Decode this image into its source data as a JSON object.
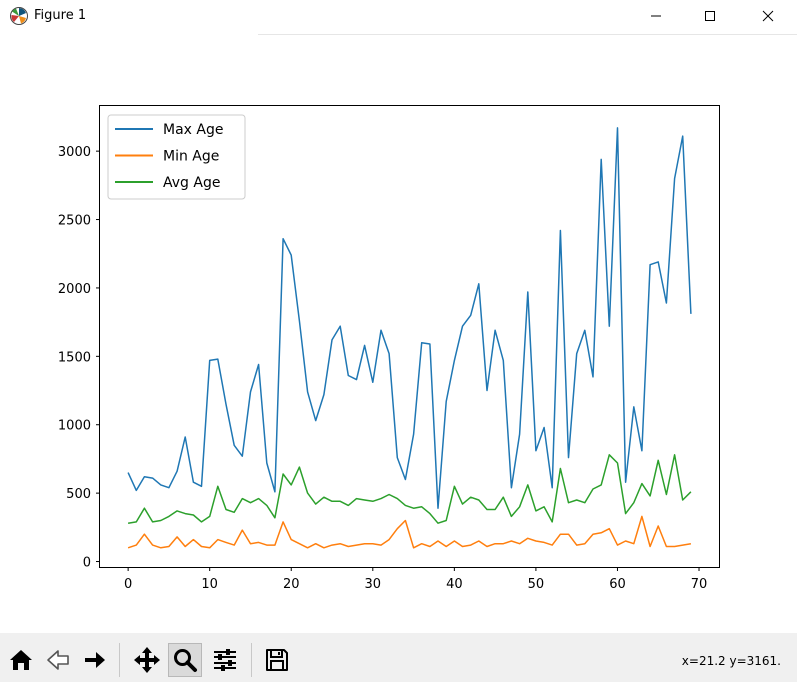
{
  "window": {
    "title": "Figure 1",
    "icon": "matplotlib-icon",
    "controls": [
      "minimize-icon",
      "maximize-icon",
      "close-icon"
    ]
  },
  "toolbar": {
    "buttons": [
      {
        "name": "home-button",
        "icon": "home-icon"
      },
      {
        "name": "back-button",
        "icon": "back-arrow-icon"
      },
      {
        "name": "forward-button",
        "icon": "forward-arrow-icon"
      },
      {
        "name": "pan-button",
        "icon": "move-icon"
      },
      {
        "name": "zoom-button",
        "icon": "magnifier-icon",
        "active": true
      },
      {
        "name": "configure-subplots-button",
        "icon": "sliders-icon"
      },
      {
        "name": "save-button",
        "icon": "floppy-disk-icon"
      }
    ],
    "coordinates": "x=21.2 y=3161."
  },
  "chart_data": {
    "type": "line",
    "title": "",
    "xlabel": "",
    "ylabel": "",
    "xlim": [
      -3.45,
      72.45
    ],
    "ylim": [
      -40,
      3330
    ],
    "xticks": [
      0,
      10,
      20,
      30,
      40,
      50,
      60,
      70
    ],
    "yticks": [
      0,
      500,
      1000,
      1500,
      2000,
      2500,
      3000
    ],
    "grid": false,
    "legend_position": "top-left",
    "x": [
      0,
      1,
      2,
      3,
      4,
      5,
      6,
      7,
      8,
      9,
      10,
      11,
      12,
      13,
      14,
      15,
      16,
      17,
      18,
      19,
      20,
      21,
      22,
      23,
      24,
      25,
      26,
      27,
      28,
      29,
      30,
      31,
      32,
      33,
      34,
      35,
      36,
      37,
      38,
      39,
      40,
      41,
      42,
      43,
      44,
      45,
      46,
      47,
      48,
      49,
      50,
      51,
      52,
      53,
      54,
      55,
      56,
      57,
      58,
      59,
      60,
      61,
      62,
      63,
      64,
      65,
      66,
      67,
      68,
      69
    ],
    "series": [
      {
        "name": "Max Age",
        "color": "#1f77b4",
        "values": [
          650,
          520,
          620,
          610,
          560,
          540,
          660,
          910,
          580,
          550,
          1470,
          1480,
          1150,
          850,
          770,
          1240,
          1440,
          720,
          510,
          2360,
          2240,
          1760,
          1240,
          1030,
          1220,
          1620,
          1720,
          1360,
          1330,
          1580,
          1310,
          1690,
          1520,
          760,
          600,
          930,
          1600,
          1590,
          390,
          1170,
          1470,
          1720,
          1800,
          2030,
          1250,
          1690,
          1470,
          540,
          930,
          1970,
          810,
          980,
          540,
          2420,
          760,
          1520,
          1690,
          1350,
          2940,
          1720,
          3170,
          580,
          1130,
          810,
          2170,
          2190,
          1890,
          2800,
          3110,
          1810
        ]
      },
      {
        "name": "Min Age",
        "color": "#ff7f0e",
        "values": [
          100,
          120,
          200,
          120,
          100,
          110,
          180,
          110,
          160,
          110,
          100,
          160,
          140,
          120,
          230,
          130,
          140,
          120,
          120,
          290,
          160,
          130,
          100,
          130,
          100,
          120,
          130,
          110,
          120,
          130,
          130,
          120,
          160,
          240,
          300,
          100,
          130,
          110,
          150,
          110,
          150,
          110,
          120,
          150,
          110,
          130,
          130,
          150,
          130,
          170,
          150,
          140,
          120,
          200,
          200,
          120,
          130,
          200,
          210,
          240,
          120,
          150,
          130,
          330,
          110,
          260,
          110,
          110,
          120,
          130
        ]
      },
      {
        "name": "Avg Age",
        "color": "#2ca02c",
        "values": [
          280,
          290,
          390,
          290,
          300,
          330,
          370,
          350,
          340,
          290,
          330,
          550,
          380,
          360,
          460,
          430,
          460,
          410,
          320,
          640,
          560,
          690,
          500,
          420,
          470,
          440,
          440,
          410,
          460,
          450,
          440,
          460,
          490,
          460,
          410,
          390,
          400,
          350,
          280,
          300,
          550,
          420,
          470,
          450,
          380,
          380,
          470,
          330,
          400,
          560,
          370,
          400,
          290,
          680,
          430,
          450,
          430,
          530,
          560,
          780,
          720,
          350,
          430,
          570,
          480,
          740,
          490,
          780,
          450,
          510
        ]
      }
    ]
  }
}
